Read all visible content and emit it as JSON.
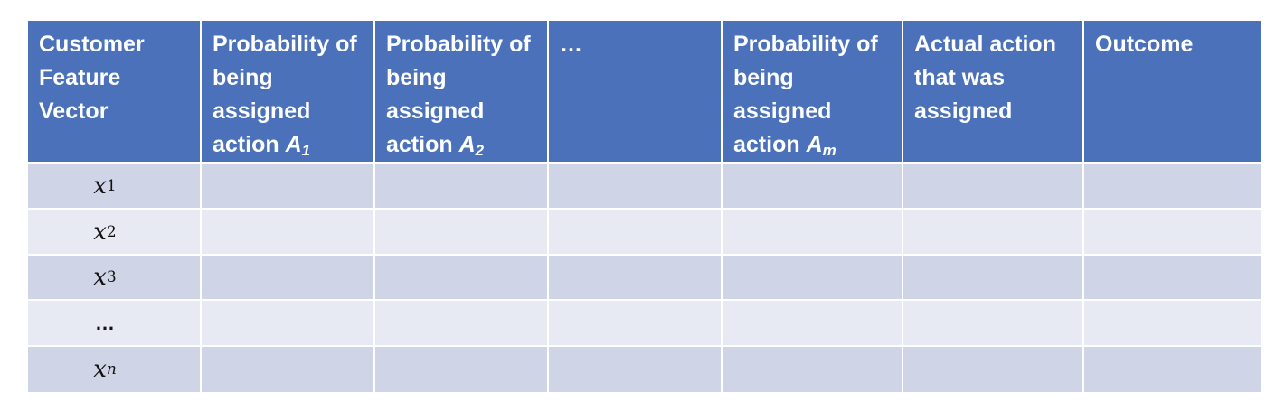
{
  "table": {
    "headers": [
      {
        "text": "Customer Feature Vector",
        "sub": ""
      },
      {
        "text": "Probability of being assigned action ",
        "symbol": "A",
        "sub": "1"
      },
      {
        "text": "Probability of being assigned action ",
        "symbol": "A",
        "sub": "2"
      },
      {
        "text": "…",
        "sub": ""
      },
      {
        "text": "Probability of being assigned action ",
        "symbol": "A",
        "sub": "m"
      },
      {
        "text": "Actual action that was assigned",
        "sub": ""
      },
      {
        "text": "Outcome",
        "sub": ""
      }
    ],
    "rows": [
      {
        "var": "x",
        "sub": "1"
      },
      {
        "var": "x",
        "sub": "2"
      },
      {
        "var": "x",
        "sub": "3"
      },
      {
        "var": "…",
        "sub": ""
      },
      {
        "var": "x",
        "sub": "n"
      }
    ]
  },
  "colors": {
    "header_bg": "#4a71b9",
    "header_text": "#ffffff",
    "row_dark": "#cfd4e6",
    "row_light": "#e8eaf3"
  }
}
